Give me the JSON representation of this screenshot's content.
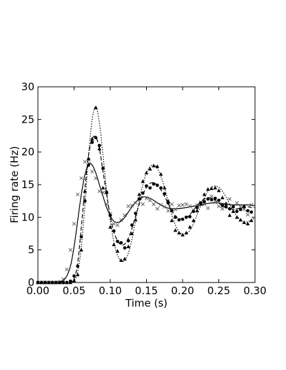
{
  "chart_data": {
    "type": "line",
    "title": "",
    "xlabel": "Time (s)",
    "ylabel": "Firing rate (Hz)",
    "xlim": [
      0.0,
      0.3
    ],
    "ylim": [
      0,
      30
    ],
    "xticks": [
      0.0,
      0.05,
      0.1,
      0.15,
      0.2,
      0.25,
      0.3
    ],
    "xtick_labels": [
      "0.00",
      "0.05",
      "0.10",
      "0.15",
      "0.20",
      "0.25",
      "0.30"
    ],
    "yticks": [
      0,
      5,
      10,
      15,
      20,
      25,
      30
    ],
    "ytick_labels": [
      "0",
      "5",
      "10",
      "15",
      "20",
      "25",
      "30"
    ],
    "grid": false,
    "legend": "none",
    "series": [
      {
        "style": "solid-line",
        "color": "#000000",
        "x": [
          0.0,
          0.02,
          0.03,
          0.035,
          0.04,
          0.045,
          0.05,
          0.055,
          0.06,
          0.065,
          0.07,
          0.075,
          0.08,
          0.085,
          0.09,
          0.095,
          0.1,
          0.105,
          0.11,
          0.115,
          0.12,
          0.125,
          0.13,
          0.135,
          0.14,
          0.145,
          0.15,
          0.155,
          0.16,
          0.165,
          0.17,
          0.175,
          0.18,
          0.19,
          0.2,
          0.21,
          0.22,
          0.23,
          0.24,
          0.25,
          0.26,
          0.27,
          0.28,
          0.29,
          0.3
        ],
        "y": [
          0,
          0,
          0.1,
          0.3,
          1.0,
          2.5,
          5.5,
          9.5,
          13.5,
          16.5,
          18.2,
          18.0,
          16.8,
          15.0,
          13.2,
          11.5,
          10.2,
          9.4,
          9.2,
          9.4,
          10.0,
          10.8,
          11.6,
          12.3,
          12.8,
          13.1,
          13.1,
          12.9,
          12.6,
          12.2,
          11.9,
          11.6,
          11.4,
          11.3,
          11.4,
          11.6,
          11.8,
          12.0,
          12.2,
          12.2,
          12.0,
          11.9,
          11.9,
          11.9,
          11.8
        ]
      },
      {
        "style": "dashed-line",
        "color": "#000000",
        "x": [
          0.0,
          0.04,
          0.045,
          0.05,
          0.055,
          0.06,
          0.065,
          0.07,
          0.075,
          0.08,
          0.085,
          0.09,
          0.095,
          0.1,
          0.105,
          0.11,
          0.115,
          0.12,
          0.125,
          0.13,
          0.135,
          0.14,
          0.145,
          0.15,
          0.155,
          0.16,
          0.165,
          0.17,
          0.175,
          0.18,
          0.185,
          0.19,
          0.195,
          0.2,
          0.205,
          0.21,
          0.215,
          0.22,
          0.225,
          0.23,
          0.235,
          0.24,
          0.245,
          0.25,
          0.255,
          0.26,
          0.265,
          0.27,
          0.275,
          0.28,
          0.285,
          0.29,
          0.295,
          0.3
        ],
        "y": [
          0,
          0,
          0.1,
          0.6,
          3.0,
          8.5,
          14.5,
          19.5,
          22.0,
          22.3,
          20.5,
          17.0,
          13.5,
          10.2,
          7.8,
          6.4,
          5.8,
          5.9,
          6.8,
          8.3,
          10.2,
          12.0,
          13.5,
          14.6,
          15.2,
          15.3,
          14.9,
          14.2,
          13.2,
          12.1,
          11.0,
          10.2,
          9.8,
          9.7,
          9.9,
          10.4,
          11.1,
          11.8,
          12.4,
          12.8,
          13.0,
          12.9,
          12.6,
          12.2,
          11.8,
          11.5,
          11.3,
          11.2,
          11.3,
          11.4,
          11.6,
          11.6,
          11.5,
          11.5
        ]
      },
      {
        "style": "dotted-line",
        "color": "#000000",
        "x": [
          0.0,
          0.045,
          0.05,
          0.055,
          0.06,
          0.065,
          0.07,
          0.075,
          0.08,
          0.085,
          0.09,
          0.095,
          0.1,
          0.105,
          0.11,
          0.115,
          0.12,
          0.125,
          0.13,
          0.135,
          0.14,
          0.145,
          0.15,
          0.155,
          0.16,
          0.165,
          0.17,
          0.175,
          0.18,
          0.185,
          0.19,
          0.195,
          0.2,
          0.205,
          0.21,
          0.215,
          0.22,
          0.225,
          0.23,
          0.235,
          0.24,
          0.245,
          0.25,
          0.255,
          0.26,
          0.265,
          0.27,
          0.275,
          0.28,
          0.285,
          0.29,
          0.295,
          0.3
        ],
        "y": [
          0,
          0,
          0.3,
          1.6,
          5.5,
          12.0,
          19.5,
          25.0,
          27.0,
          24.5,
          19.5,
          14.0,
          9.5,
          6.2,
          4.2,
          3.3,
          3.4,
          4.5,
          6.6,
          9.5,
          12.6,
          15.0,
          16.8,
          17.8,
          18.0,
          17.5,
          16.3,
          14.5,
          12.4,
          10.4,
          8.8,
          7.8,
          7.4,
          7.5,
          8.0,
          9.0,
          10.4,
          11.8,
          13.0,
          14.0,
          14.6,
          14.8,
          14.6,
          14.0,
          13.1,
          12.0,
          11.0,
          10.2,
          9.6,
          9.3,
          9.3,
          9.6,
          9.9
        ]
      },
      {
        "style": "markers",
        "marker": "x",
        "color": "#555555",
        "x": [
          0.0,
          0.005,
          0.01,
          0.015,
          0.02,
          0.025,
          0.03,
          0.035,
          0.04,
          0.045,
          0.05,
          0.055,
          0.06,
          0.065,
          0.07,
          0.075,
          0.08,
          0.085,
          0.09,
          0.095,
          0.1,
          0.105,
          0.11,
          0.115,
          0.12,
          0.125,
          0.13,
          0.135,
          0.14,
          0.145,
          0.15,
          0.155,
          0.16,
          0.165,
          0.17,
          0.175,
          0.18,
          0.185,
          0.19,
          0.195,
          0.2,
          0.205,
          0.21,
          0.215,
          0.22,
          0.225,
          0.23,
          0.235,
          0.24,
          0.245,
          0.25,
          0.255,
          0.26,
          0.265,
          0.27,
          0.275,
          0.28,
          0.285,
          0.29,
          0.295
        ],
        "y": [
          0,
          0,
          0,
          0,
          0,
          0,
          0.1,
          0.5,
          2.0,
          5.0,
          9.0,
          13.5,
          16.0,
          18.5,
          18.8,
          17.0,
          16.0,
          14.0,
          13.8,
          12.0,
          10.5,
          9.0,
          8.8,
          9.6,
          10.3,
          11.7,
          11.8,
          12.2,
          12.8,
          12.0,
          12.9,
          12.6,
          12.0,
          11.3,
          11.9,
          11.6,
          11.0,
          12.0,
          11.2,
          11.8,
          11.9,
          12.0,
          11.7,
          11.1,
          11.9,
          12.3,
          12.0,
          11.4,
          13.2,
          12.3,
          11.7,
          11.3,
          11.9,
          12.8,
          11.0,
          12.2,
          11.6,
          11.2,
          10.4,
          11.9
        ]
      },
      {
        "style": "markers",
        "marker": "circle",
        "color": "#000000",
        "x": [
          0.0,
          0.005,
          0.01,
          0.015,
          0.02,
          0.025,
          0.03,
          0.035,
          0.04,
          0.045,
          0.05,
          0.055,
          0.06,
          0.065,
          0.07,
          0.075,
          0.08,
          0.085,
          0.09,
          0.095,
          0.1,
          0.105,
          0.11,
          0.115,
          0.12,
          0.125,
          0.13,
          0.135,
          0.14,
          0.145,
          0.15,
          0.155,
          0.16,
          0.165,
          0.17,
          0.175,
          0.18,
          0.185,
          0.19,
          0.195,
          0.2,
          0.205,
          0.21,
          0.215,
          0.22,
          0.225,
          0.23,
          0.235,
          0.24,
          0.245,
          0.25,
          0.255,
          0.26,
          0.265,
          0.27,
          0.275,
          0.28,
          0.285,
          0.29,
          0.295
        ],
        "y": [
          0,
          0,
          0,
          0,
          0,
          0,
          0,
          0,
          0,
          0.2,
          1.0,
          2.5,
          7.0,
          12.5,
          18.0,
          21.5,
          22.2,
          21.0,
          17.5,
          13.8,
          10.3,
          7.9,
          6.3,
          6.1,
          5.3,
          6.4,
          8.8,
          10.6,
          12.8,
          13.7,
          14.8,
          14.5,
          15.1,
          14.9,
          14.5,
          13.6,
          12.2,
          11.0,
          10.0,
          9.6,
          9.7,
          10.0,
          10.1,
          10.9,
          11.5,
          12.2,
          12.4,
          12.8,
          12.7,
          12.9,
          12.6,
          11.8,
          11.6,
          11.3,
          11.6,
          10.9,
          11.2,
          11.6,
          11.0,
          10.8
        ]
      },
      {
        "style": "markers",
        "marker": "triangle",
        "color": "#000000",
        "x": [
          0.0,
          0.005,
          0.01,
          0.015,
          0.02,
          0.025,
          0.03,
          0.035,
          0.04,
          0.045,
          0.05,
          0.055,
          0.06,
          0.065,
          0.07,
          0.075,
          0.08,
          0.085,
          0.09,
          0.095,
          0.1,
          0.105,
          0.11,
          0.115,
          0.12,
          0.125,
          0.13,
          0.135,
          0.14,
          0.145,
          0.15,
          0.155,
          0.16,
          0.165,
          0.17,
          0.175,
          0.18,
          0.185,
          0.19,
          0.195,
          0.2,
          0.205,
          0.21,
          0.215,
          0.22,
          0.225,
          0.23,
          0.235,
          0.24,
          0.245,
          0.25,
          0.255,
          0.26,
          0.265,
          0.27,
          0.275,
          0.28,
          0.285,
          0.29,
          0.295
        ],
        "y": [
          0,
          0,
          0,
          0,
          0,
          0,
          0,
          0,
          0,
          0,
          0.3,
          1.2,
          5.0,
          14.0,
          19.0,
          22.0,
          26.8,
          20.5,
          14.5,
          13.8,
          8.5,
          5.8,
          4.8,
          3.4,
          3.6,
          5.5,
          7.5,
          9.6,
          13.5,
          15.5,
          16.8,
          17.4,
          17.9,
          17.8,
          16.6,
          14.5,
          12.5,
          9.5,
          8.0,
          7.6,
          7.3,
          7.6,
          8.5,
          9.5,
          11.0,
          12.0,
          13.5,
          14.3,
          14.4,
          14.5,
          14.1,
          13.0,
          12.1,
          10.3,
          10.9,
          10.0,
          9.6,
          9.2,
          9.0,
          9.5
        ]
      }
    ]
  }
}
